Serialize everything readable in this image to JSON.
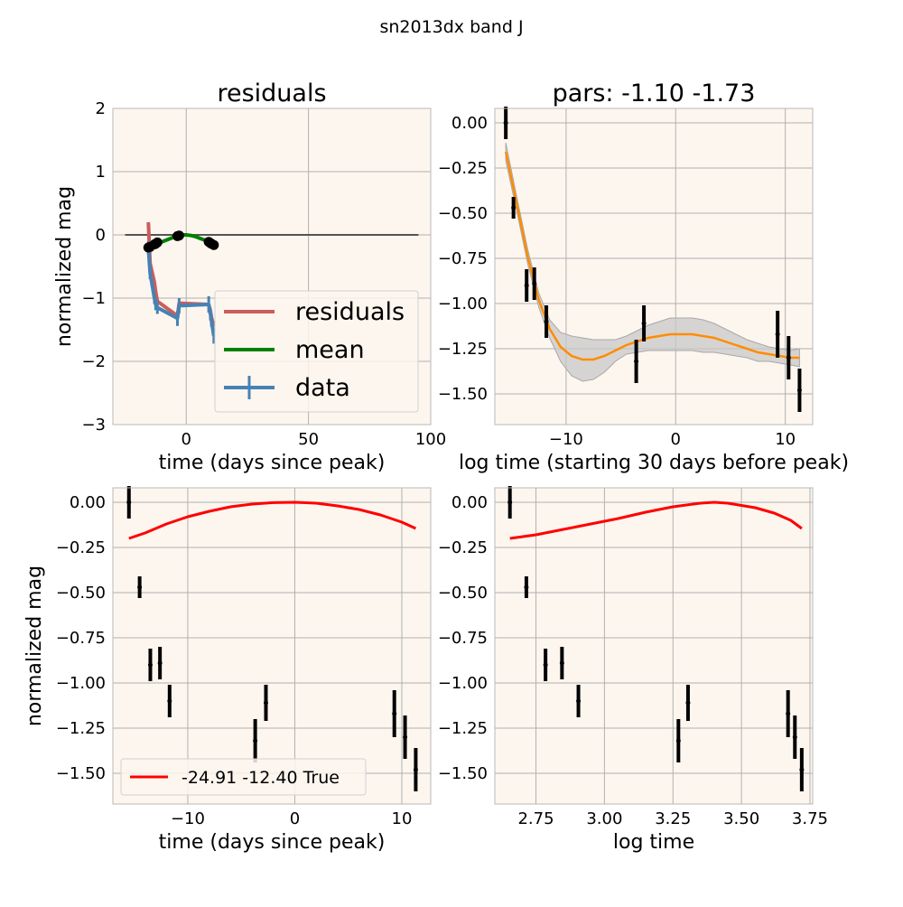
{
  "figure": {
    "suptitle": "sn2013dx band J",
    "colors": {
      "axes_bg": "#fdf6ef",
      "grid": "#b0b0b0",
      "spine": "#b8b8b8",
      "residuals": "#cd5c5c",
      "mean": "#008000",
      "data": "#4682b4",
      "zero_line": "#555555",
      "points": "#000000",
      "gp_mean": "#ff8c00",
      "gp_band": "#c8c8c8",
      "model": "#ff0000"
    }
  },
  "chart_data": [
    {
      "panel": "top-left",
      "type": "line",
      "title": "residuals",
      "xlabel": "time (days since peak)",
      "ylabel": "normalized mag",
      "xlim": [
        -30,
        100
      ],
      "ylim": [
        -3,
        2
      ],
      "xticks": [
        0,
        50,
        100
      ],
      "xticklabels": [
        "0",
        "50",
        "100"
      ],
      "yticks": [
        2,
        1,
        0,
        -1,
        -2,
        -3
      ],
      "yticklabels": [
        "2",
        "1",
        "0",
        "−1",
        "−2",
        "−3"
      ],
      "grid": true,
      "legend": {
        "placement": "lower-right",
        "entries": [
          "residuals",
          "mean",
          "data"
        ]
      },
      "zero_line": {
        "x": [
          -25,
          95
        ],
        "y": [
          0,
          0
        ]
      },
      "series": [
        {
          "name": "residuals",
          "x": [
            -15.5,
            -14.8,
            -13.0,
            -12.5,
            -11.8,
            -3.6,
            -2.9,
            9.2,
            9.9,
            10.3,
            11.3
          ],
          "y": [
            0.2,
            -0.45,
            -0.75,
            -0.9,
            -1.05,
            -1.28,
            -1.08,
            -1.1,
            -1.2,
            -1.3,
            -1.45
          ]
        },
        {
          "name": "mean",
          "x": [
            -15.5,
            -14.0,
            -12.0,
            -10.0,
            -8.0,
            -6.0,
            -4.0,
            -2.0,
            0.0,
            2.0,
            4.0,
            6.0,
            8.0,
            10.0,
            11.3
          ],
          "y": [
            -0.2,
            -0.17,
            -0.14,
            -0.11,
            -0.08,
            -0.05,
            -0.02,
            0.0,
            0.0,
            -0.01,
            -0.03,
            -0.06,
            -0.09,
            -0.12,
            -0.15
          ]
        },
        {
          "name": "data",
          "x": [
            -15.5,
            -14.8,
            -13.0,
            -12.5,
            -11.8,
            -3.6,
            -2.9,
            9.2,
            9.9,
            10.3,
            11.3
          ],
          "y": [
            -0.2,
            -0.6,
            -1.0,
            -1.1,
            -1.15,
            -1.32,
            -1.12,
            -1.1,
            -1.25,
            -1.35,
            -1.6
          ],
          "yerr": [
            0.1,
            0.1,
            0.09,
            0.09,
            0.1,
            0.12,
            0.12,
            0.13,
            0.1,
            0.1,
            0.12
          ]
        }
      ],
      "mean_markers": {
        "x": [
          -15.5,
          -14.8,
          -13.0,
          -12.5,
          -11.8,
          -3.6,
          -2.9,
          9.2,
          9.9,
          10.3,
          11.3
        ],
        "y": [
          -0.2,
          -0.19,
          -0.15,
          -0.14,
          -0.12,
          -0.02,
          -0.01,
          -0.11,
          -0.13,
          -0.14,
          -0.16
        ]
      }
    },
    {
      "panel": "top-right",
      "type": "line",
      "title": "pars: -1.10 -1.73",
      "xlabel": "log time (starting 30 days before peak)",
      "ylabel": "",
      "xlim": [
        -16.5,
        12.5
      ],
      "ylim": [
        -1.67,
        0.08
      ],
      "xticks": [
        -10,
        0,
        10
      ],
      "xticklabels": [
        "−10",
        "0",
        "10"
      ],
      "yticks": [
        0.0,
        -0.25,
        -0.5,
        -0.75,
        -1.0,
        -1.25,
        -1.5
      ],
      "yticklabels": [
        "0.00",
        "−0.25",
        "−0.50",
        "−0.75",
        "−1.00",
        "−1.25",
        "−1.50"
      ],
      "grid": true,
      "points": {
        "x": [
          -15.5,
          -14.8,
          -13.6,
          -12.9,
          -11.8,
          -3.6,
          -2.9,
          9.3,
          10.3,
          11.3
        ],
        "y": [
          0.0,
          -0.47,
          -0.9,
          -0.89,
          -1.1,
          -1.32,
          -1.11,
          -1.17,
          -1.3,
          -1.48
        ],
        "yerr": [
          0.09,
          0.06,
          0.09,
          0.09,
          0.09,
          0.12,
          0.1,
          0.13,
          0.12,
          0.12
        ]
      },
      "gp_mean": {
        "x": [
          -15.5,
          -14.5,
          -13.5,
          -12.5,
          -11.5,
          -10.5,
          -9.5,
          -8.5,
          -7.5,
          -6.5,
          -5.5,
          -4.5,
          -3.5,
          -2.5,
          -1.5,
          -0.5,
          0.5,
          1.5,
          2.5,
          3.5,
          4.5,
          5.5,
          6.5,
          7.5,
          8.5,
          9.5,
          10.5,
          11.3
        ],
        "y": [
          -0.16,
          -0.45,
          -0.74,
          -0.98,
          -1.14,
          -1.24,
          -1.29,
          -1.31,
          -1.31,
          -1.29,
          -1.26,
          -1.23,
          -1.21,
          -1.19,
          -1.18,
          -1.17,
          -1.17,
          -1.17,
          -1.18,
          -1.19,
          -1.21,
          -1.23,
          -1.25,
          -1.27,
          -1.28,
          -1.29,
          -1.3,
          -1.3
        ]
      },
      "gp_band": {
        "x": [
          -15.5,
          -14.5,
          -13.5,
          -12.5,
          -11.5,
          -10.5,
          -9.5,
          -8.5,
          -7.5,
          -6.5,
          -5.5,
          -4.5,
          -3.5,
          -2.5,
          -1.5,
          -0.5,
          0.5,
          1.5,
          2.5,
          3.5,
          4.5,
          5.5,
          6.5,
          7.5,
          8.5,
          9.5,
          10.5,
          11.3
        ],
        "sigma": [
          0.05,
          0.04,
          0.04,
          0.04,
          0.05,
          0.08,
          0.11,
          0.12,
          0.11,
          0.09,
          0.06,
          0.05,
          0.06,
          0.07,
          0.08,
          0.09,
          0.09,
          0.09,
          0.09,
          0.08,
          0.07,
          0.06,
          0.05,
          0.05,
          0.04,
          0.04,
          0.04,
          0.05
        ]
      }
    },
    {
      "panel": "bottom-left",
      "type": "line",
      "title": "",
      "xlabel": "time (days since peak)",
      "ylabel": "normalized mag",
      "xlim": [
        -17,
        12.7
      ],
      "ylim": [
        -1.67,
        0.08
      ],
      "xticks": [
        -10,
        0,
        10
      ],
      "xticklabels": [
        "−10",
        "0",
        "10"
      ],
      "yticks": [
        0.0,
        -0.25,
        -0.5,
        -0.75,
        -1.0,
        -1.25,
        -1.5
      ],
      "yticklabels": [
        "0.00",
        "−0.25",
        "−0.50",
        "−0.75",
        "−1.00",
        "−1.25",
        "−1.50"
      ],
      "grid": true,
      "legend": {
        "placement": "lower-left",
        "entries": [
          "-24.91 -12.40 True"
        ]
      },
      "points": {
        "x": [
          -15.5,
          -14.5,
          -13.5,
          -12.6,
          -11.7,
          -3.7,
          -2.7,
          9.3,
          10.3,
          11.3
        ],
        "y": [
          0.0,
          -0.47,
          -0.9,
          -0.89,
          -1.1,
          -1.32,
          -1.11,
          -1.17,
          -1.3,
          -1.48
        ],
        "yerr": [
          0.09,
          0.06,
          0.09,
          0.09,
          0.09,
          0.12,
          0.1,
          0.13,
          0.12,
          0.12
        ]
      },
      "series": [
        {
          "name": "-24.91 -12.40 True",
          "x": [
            -15.5,
            -14,
            -12,
            -10,
            -8,
            -6,
            -4,
            -2,
            0,
            2,
            4,
            6,
            8,
            10,
            11.3
          ],
          "y": [
            -0.2,
            -0.17,
            -0.12,
            -0.08,
            -0.05,
            -0.025,
            -0.01,
            -0.002,
            0.0,
            -0.005,
            -0.02,
            -0.04,
            -0.07,
            -0.11,
            -0.145
          ]
        }
      ]
    },
    {
      "panel": "bottom-right",
      "type": "line",
      "title": "",
      "xlabel": "log time",
      "ylabel": "",
      "xlim": [
        2.6,
        3.76
      ],
      "ylim": [
        -1.67,
        0.08
      ],
      "xticks": [
        2.75,
        3.0,
        3.25,
        3.5,
        3.75
      ],
      "xticklabels": [
        "2.75",
        "3.00",
        "3.25",
        "3.50",
        "3.75"
      ],
      "yticks": [
        0.0,
        -0.25,
        -0.5,
        -0.75,
        -1.0,
        -1.25,
        -1.5
      ],
      "yticklabels": [
        "0.00",
        "−0.25",
        "−0.50",
        "−0.75",
        "−1.00",
        "−1.25",
        "−1.50"
      ],
      "grid": true,
      "points": {
        "x": [
          2.655,
          2.715,
          2.785,
          2.845,
          2.905,
          3.27,
          3.305,
          3.67,
          3.695,
          3.72
        ],
        "y": [
          0.0,
          -0.47,
          -0.9,
          -0.89,
          -1.1,
          -1.32,
          -1.11,
          -1.17,
          -1.3,
          -1.48
        ],
        "yerr": [
          0.09,
          0.06,
          0.09,
          0.09,
          0.09,
          0.12,
          0.1,
          0.13,
          0.12,
          0.12
        ]
      },
      "series": [
        {
          "name": "",
          "x": [
            2.655,
            2.75,
            2.85,
            2.95,
            3.05,
            3.15,
            3.25,
            3.35,
            3.4,
            3.45,
            3.55,
            3.62,
            3.68,
            3.72
          ],
          "y": [
            -0.2,
            -0.18,
            -0.15,
            -0.12,
            -0.09,
            -0.055,
            -0.025,
            -0.005,
            0.0,
            -0.005,
            -0.03,
            -0.06,
            -0.1,
            -0.145
          ]
        }
      ]
    }
  ]
}
